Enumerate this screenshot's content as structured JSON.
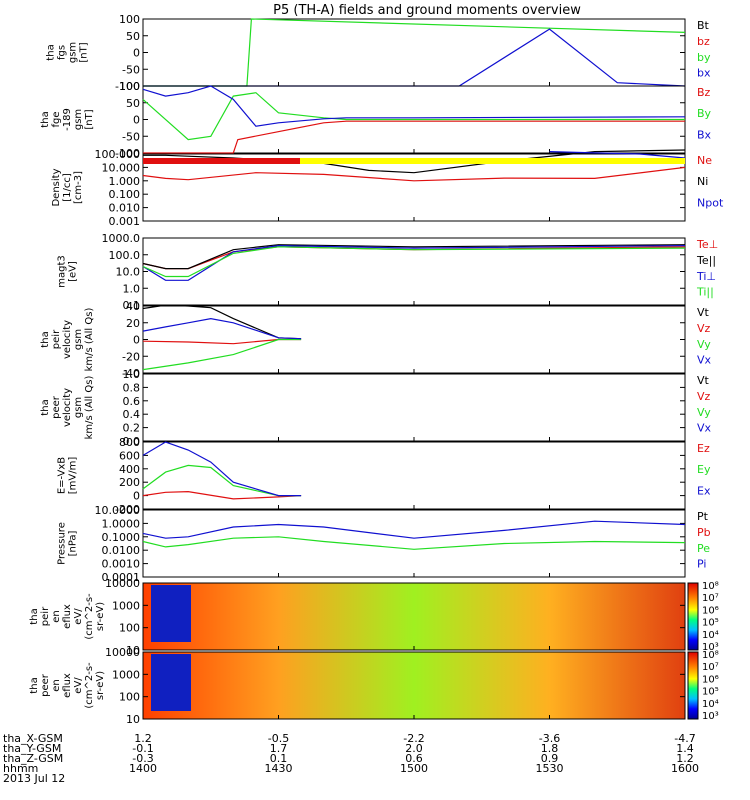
{
  "title": "P5 (TH-A) fields and ground moments overview",
  "colors": {
    "black": "#000000",
    "red": "#e01010",
    "green": "#22dd22",
    "blue": "#1010d0",
    "yellow": "#ffff00",
    "axis": "#000000"
  },
  "panels": [
    {
      "id": "fgs",
      "ylabel": [
        "tha",
        "fgs",
        "gsm",
        "[nT]"
      ],
      "ylim": [
        -100,
        100
      ],
      "log": false,
      "yticks": [
        "100",
        "50",
        "0",
        "-50",
        "-100"
      ],
      "legend": [
        {
          "t": "Bt",
          "c": "black"
        },
        {
          "t": "bz",
          "c": "red"
        },
        {
          "t": "by",
          "c": "green"
        },
        {
          "t": "bx",
          "c": "blue"
        }
      ]
    },
    {
      "id": "fge",
      "ylabel": [
        "tha",
        "fge",
        "-189",
        "gsm",
        "[nT]"
      ],
      "ylim": [
        -100,
        100
      ],
      "log": false,
      "yticks": [
        "100",
        "50",
        "0",
        "-50",
        "-100"
      ],
      "legend": [
        {
          "t": "Bz",
          "c": "red"
        },
        {
          "t": "By",
          "c": "green"
        },
        {
          "t": "Bx",
          "c": "blue"
        }
      ]
    },
    {
      "id": "density",
      "ylabel": [
        "Density",
        "[1/cc]",
        "[cm-3]"
      ],
      "ylim": [
        0.001,
        100
      ],
      "log": true,
      "yticks": [
        "100.000",
        "10.000",
        "1.000",
        "0.100",
        "0.010",
        "0.001"
      ],
      "legend": [
        {
          "t": "Ne",
          "c": "red"
        },
        {
          "t": "Ni",
          "c": "black"
        },
        {
          "t": "Npot",
          "c": "blue"
        }
      ]
    },
    {
      "id": "temp",
      "ylabel": [
        "magt3",
        "[eV]"
      ],
      "ylim": [
        0.1,
        1000
      ],
      "log": true,
      "yticks": [
        "1000.0",
        "100.0",
        "10.0",
        "1.0",
        "0.1"
      ],
      "legend": [
        {
          "t": "Te⊥",
          "c": "red"
        },
        {
          "t": "Te||",
          "c": "black"
        },
        {
          "t": "Ti⊥",
          "c": "blue"
        },
        {
          "t": "Ti||",
          "c": "green"
        }
      ]
    },
    {
      "id": "vi",
      "ylabel": [
        "tha",
        "peir",
        "velocity",
        "gsm",
        "km/s (All Qs)"
      ],
      "ylim": [
        -40,
        40
      ],
      "log": false,
      "yticks": [
        "40",
        "20",
        "0",
        "-20",
        "-40"
      ],
      "legend": [
        {
          "t": "Vt",
          "c": "black"
        },
        {
          "t": "Vz",
          "c": "red"
        },
        {
          "t": "Vy",
          "c": "green"
        },
        {
          "t": "Vx",
          "c": "blue"
        }
      ]
    },
    {
      "id": "ve",
      "ylabel": [
        "tha",
        "peer",
        "velocity",
        "gsm",
        "km/s (All Qs)"
      ],
      "ylim": [
        0,
        1
      ],
      "log": false,
      "yticks": [
        "1.0",
        "0.8",
        "0.6",
        "0.4",
        "0.2",
        "0.0"
      ],
      "legend": [
        {
          "t": "Vt",
          "c": "black"
        },
        {
          "t": "Vz",
          "c": "red"
        },
        {
          "t": "Vy",
          "c": "green"
        },
        {
          "t": "Vx",
          "c": "blue"
        }
      ]
    },
    {
      "id": "efield",
      "ylabel": [
        "E=-VxB",
        "[mV/m]"
      ],
      "ylim": [
        -200,
        800
      ],
      "log": false,
      "yticks": [
        "800",
        "600",
        "400",
        "200",
        "0",
        "-200"
      ],
      "legend": [
        {
          "t": "Ez",
          "c": "red"
        },
        {
          "t": "Ey",
          "c": "green"
        },
        {
          "t": "Ex",
          "c": "blue"
        }
      ]
    },
    {
      "id": "pressure",
      "ylabel": [
        "Pressure",
        "[nPa]"
      ],
      "ylim": [
        0.0001,
        100
      ],
      "log": true,
      "yticks": [
        "10.0000",
        "1.0000",
        "0.1000",
        "0.0100",
        "0.0010",
        "0.0001"
      ],
      "legend": [
        {
          "t": "Pt",
          "c": "black"
        },
        {
          "t": "Pb",
          "c": "red"
        },
        {
          "t": "Pe",
          "c": "green"
        },
        {
          "t": "Pi",
          "c": "blue"
        }
      ]
    },
    {
      "id": "ieflux",
      "ylabel": [
        "tha",
        "peir",
        "en",
        "eflux",
        "eV/",
        "(cm^2-s-",
        "sr-eV)"
      ],
      "ylim": [
        5,
        30000
      ],
      "log": true,
      "yticks": [
        "10000",
        "1000",
        "100",
        "10"
      ],
      "colorbar": [
        "10⁸",
        "10⁷",
        "10⁶",
        "10⁵",
        "10⁴",
        "10³"
      ]
    },
    {
      "id": "eeflux",
      "ylabel": [
        "tha",
        "peer",
        "en",
        "eflux",
        "eV/",
        "(cm^2-s-",
        "sr-eV)"
      ],
      "ylim": [
        5,
        30000
      ],
      "log": true,
      "yticks": [
        "10000",
        "1000",
        "100",
        "10"
      ],
      "colorbar": [
        "10⁸",
        "10⁷",
        "10⁶",
        "10⁵",
        "10⁴",
        "10³"
      ]
    }
  ],
  "xaxis": {
    "row_labels": [
      "tha_X-GSM",
      "tha_Y-GSM",
      "tha_Z-GSM",
      "hhmm",
      "2013 Jul 12"
    ],
    "ticks": [
      {
        "t": "1400",
        "x": [
          "1.2",
          "-0.1",
          "-0.3"
        ]
      },
      {
        "t": "1430",
        "x": [
          "-0.5",
          "1.7",
          "0.1"
        ]
      },
      {
        "t": "1500",
        "x": [
          "-2.2",
          "2.0",
          "0.6"
        ]
      },
      {
        "t": "1530",
        "x": [
          "-3.6",
          "1.8",
          "0.9"
        ]
      },
      {
        "t": "1600",
        "x": [
          "-4.7",
          "1.4",
          "1.2"
        ]
      }
    ]
  },
  "chart_data": {
    "type": "line",
    "title": "P5 (TH-A) fields and ground moments overview",
    "x_range": [
      "2013-07-12 14:00",
      "2013-07-12 16:00"
    ],
    "time_ticks": [
      "1400",
      "1430",
      "1500",
      "1530",
      "1600"
    ],
    "series": [
      {
        "name": "Bt",
        "panel": "fgs",
        "color": "black",
        "x": [
          1400,
          1600
        ],
        "values": [
          null,
          null
        ]
      },
      {
        "name": "by",
        "panel": "fgs",
        "color": "green",
        "x": [
          1400,
          1423,
          1424,
          1600
        ],
        "values": [
          -100,
          -100,
          100,
          60
        ]
      },
      {
        "name": "bx",
        "panel": "fgs",
        "color": "blue",
        "x": [
          1400,
          1510,
          1530,
          1545,
          1600
        ],
        "values": [
          -100,
          -100,
          70,
          -90,
          -100
        ]
      },
      {
        "name": "Bz",
        "panel": "fge",
        "color": "red",
        "x": [
          1400,
          1420,
          1421,
          1440,
          1445,
          1500,
          1600
        ],
        "values": [
          -100,
          -100,
          -60,
          -10,
          -5,
          -5,
          -5
        ]
      },
      {
        "name": "By",
        "panel": "fge",
        "color": "green",
        "x": [
          1400,
          1410,
          1415,
          1420,
          1425,
          1430,
          1440,
          1445,
          1500,
          1600
        ],
        "values": [
          60,
          -60,
          -50,
          70,
          80,
          20,
          5,
          0,
          0,
          0
        ]
      },
      {
        "name": "Bx",
        "panel": "fge",
        "color": "blue",
        "x": [
          1400,
          1405,
          1410,
          1415,
          1420,
          1425,
          1430,
          1440,
          1445,
          1500,
          1600
        ],
        "values": [
          90,
          70,
          80,
          100,
          60,
          -20,
          -10,
          2,
          5,
          5,
          8
        ]
      },
      {
        "name": "Ne",
        "panel": "density",
        "color": "red",
        "x": [
          1400,
          1405,
          1410,
          1425,
          1440,
          1500,
          1520,
          1540,
          1600
        ],
        "values": [
          2.5,
          1.5,
          1.2,
          4.0,
          3.0,
          1.0,
          1.6,
          1.5,
          10.0
        ]
      },
      {
        "name": "Ni",
        "panel": "density",
        "color": "black",
        "x": [
          1400,
          1405,
          1420,
          1440,
          1450,
          1500,
          1520,
          1540,
          1600
        ],
        "values": [
          80,
          80,
          50,
          20,
          6,
          4,
          30,
          150,
          200
        ]
      },
      {
        "name": "Npot",
        "panel": "density",
        "color": "blue",
        "x": [
          1530,
          1540,
          1550,
          1600
        ],
        "values": [
          150,
          120,
          100,
          50
        ]
      },
      {
        "name": "Te⊥",
        "panel": "temp",
        "color": "red",
        "x": [
          1400,
          1405,
          1410,
          1420,
          1430,
          1500,
          1600
        ],
        "values": [
          30,
          15,
          15,
          150,
          300,
          200,
          300
        ]
      },
      {
        "name": "Te||",
        "panel": "temp",
        "color": "black",
        "x": [
          1400,
          1405,
          1410,
          1420,
          1430,
          1500,
          1600
        ],
        "values": [
          30,
          15,
          15,
          200,
          400,
          300,
          400
        ]
      },
      {
        "name": "Ti⊥",
        "panel": "temp",
        "color": "blue",
        "x": [
          1400,
          1405,
          1410,
          1420,
          1430,
          1500,
          1600
        ],
        "values": [
          20,
          3,
          3,
          150,
          350,
          250,
          350
        ]
      },
      {
        "name": "Ti||",
        "panel": "temp",
        "color": "green",
        "x": [
          1400,
          1405,
          1410,
          1420,
          1430,
          1500,
          1600
        ],
        "values": [
          20,
          5,
          5,
          120,
          300,
          200,
          250
        ]
      },
      {
        "name": "Vt",
        "panel": "vi",
        "color": "black",
        "x": [
          1400,
          1405,
          1410,
          1415,
          1420,
          1430,
          1435
        ],
        "values": [
          37,
          41,
          40,
          38,
          25,
          2,
          1
        ]
      },
      {
        "name": "Vz",
        "panel": "vi",
        "color": "red",
        "x": [
          1400,
          1410,
          1420,
          1430,
          1435
        ],
        "values": [
          -2,
          -3,
          -5,
          0,
          0
        ]
      },
      {
        "name": "Vy",
        "panel": "vi",
        "color": "green",
        "x": [
          1400,
          1410,
          1420,
          1430,
          1435
        ],
        "values": [
          -36,
          -28,
          -18,
          0,
          0
        ]
      },
      {
        "name": "Vx",
        "panel": "vi",
        "color": "blue",
        "x": [
          1400,
          1405,
          1410,
          1415,
          1420,
          1430,
          1435
        ],
        "values": [
          10,
          15,
          20,
          25,
          20,
          2,
          1
        ]
      },
      {
        "name": "Ez",
        "panel": "efield",
        "color": "red",
        "x": [
          1400,
          1405,
          1410,
          1420,
          1430,
          1435
        ],
        "values": [
          0,
          50,
          60,
          -50,
          -20,
          0
        ]
      },
      {
        "name": "Ey",
        "panel": "efield",
        "color": "green",
        "x": [
          1400,
          1405,
          1410,
          1415,
          1420,
          1430,
          1435
        ],
        "values": [
          100,
          350,
          450,
          420,
          150,
          0,
          0
        ]
      },
      {
        "name": "Ex",
        "panel": "efield",
        "color": "blue",
        "x": [
          1400,
          1405,
          1410,
          1415,
          1420,
          1430,
          1435
        ],
        "values": [
          600,
          800,
          680,
          500,
          200,
          0,
          0
        ]
      },
      {
        "name": "Pt",
        "panel": "pressure",
        "color": "black",
        "x": [
          1400,
          1600
        ],
        "values": [
          null,
          null
        ]
      },
      {
        "name": "Pb",
        "panel": "pressure",
        "color": "red",
        "x": [
          1400,
          1600
        ],
        "values": [
          null,
          null
        ]
      },
      {
        "name": "Pe",
        "panel": "pressure",
        "color": "green",
        "x": [
          1400,
          1405,
          1410,
          1420,
          1430,
          1440,
          1500,
          1520,
          1540,
          1600
        ],
        "values": [
          0.15,
          0.05,
          0.08,
          0.3,
          0.4,
          0.15,
          0.03,
          0.1,
          0.15,
          0.12
        ]
      },
      {
        "name": "Pi",
        "panel": "pressure",
        "color": "blue",
        "x": [
          1400,
          1405,
          1410,
          1420,
          1430,
          1440,
          1500,
          1520,
          1540,
          1600
        ],
        "values": [
          0.8,
          0.3,
          0.4,
          3,
          5,
          3,
          0.3,
          1.5,
          10,
          5
        ]
      }
    ]
  }
}
